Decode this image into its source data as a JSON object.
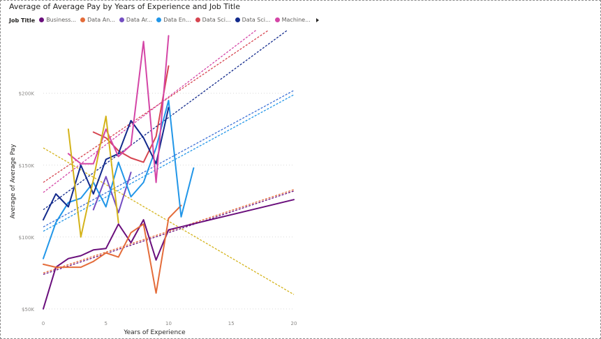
{
  "chart_data": {
    "type": "line",
    "title": "Average of Average Pay by Years of Experience and Job Title",
    "xlabel": "Years of Experience",
    "ylabel": "Average of Average Pay",
    "xlim": [
      0,
      20
    ],
    "ylim": [
      47000,
      245000
    ],
    "x_ticks": [
      {
        "value": 0,
        "label": "0"
      },
      {
        "value": 5,
        "label": "5"
      },
      {
        "value": 10,
        "label": "10"
      },
      {
        "value": 15,
        "label": "15"
      },
      {
        "value": 20,
        "label": "20"
      }
    ],
    "y_ticks": [
      {
        "value": 50000,
        "label": "$50K"
      },
      {
        "value": 100000,
        "label": "$100K"
      },
      {
        "value": 150000,
        "label": "$150K"
      },
      {
        "value": 200000,
        "label": "$200K"
      }
    ],
    "grid": true,
    "legend": {
      "title": "Job Title",
      "position": "top-left"
    },
    "series": [
      {
        "name": "Business...",
        "color": "#6a0f7c",
        "points": [
          [
            0,
            50000
          ],
          [
            1,
            79000
          ],
          [
            2,
            85000
          ],
          [
            3,
            87000
          ],
          [
            4,
            91000
          ],
          [
            5,
            92000
          ],
          [
            6,
            109000
          ],
          [
            7,
            96000
          ],
          [
            8,
            112000
          ],
          [
            9,
            84000
          ],
          [
            10,
            105000
          ],
          [
            20,
            126000
          ]
        ],
        "trend": [
          [
            0,
            74000
          ],
          [
            20,
            132000
          ]
        ]
      },
      {
        "name": "Data An...",
        "color": "#e46c3a",
        "points": [
          [
            0,
            81000
          ],
          [
            1,
            79000
          ],
          [
            2,
            79000
          ],
          [
            3,
            79000
          ],
          [
            4,
            83000
          ],
          [
            5,
            89000
          ],
          [
            6,
            86000
          ],
          [
            7,
            103000
          ],
          [
            8,
            109000
          ],
          [
            9,
            61000
          ],
          [
            10,
            113000
          ],
          [
            11,
            122000
          ]
        ],
        "trend": [
          [
            0,
            75000
          ],
          [
            20,
            133000
          ]
        ]
      },
      {
        "name": "Data Ar...",
        "color": "#744ec2",
        "points": [
          [
            4,
            119000
          ],
          [
            5,
            142000
          ],
          [
            6,
            117000
          ],
          [
            7,
            145000
          ]
        ],
        "trend": []
      },
      {
        "name": "Data En...",
        "color": "#2196e8",
        "points": [
          [
            0,
            85000
          ],
          [
            1,
            110000
          ],
          [
            2,
            124000
          ],
          [
            3,
            127000
          ],
          [
            4,
            138000
          ],
          [
            5,
            121000
          ],
          [
            6,
            152000
          ],
          [
            7,
            128000
          ],
          [
            8,
            138000
          ],
          [
            9,
            162000
          ],
          [
            10,
            195000
          ],
          [
            11,
            114000
          ],
          [
            12,
            148000
          ]
        ],
        "trend": [
          [
            0,
            104000
          ],
          [
            20,
            199000
          ]
        ]
      },
      {
        "name": "Data Sci...",
        "color": "#d64550",
        "points": [
          [
            4,
            173000
          ],
          [
            5,
            169000
          ],
          [
            6,
            160000
          ],
          [
            7,
            155000
          ],
          [
            8,
            152000
          ],
          [
            9,
            170000
          ],
          [
            10,
            219000
          ]
        ],
        "trend": [
          [
            0,
            138000
          ],
          [
            18,
            244000
          ]
        ]
      },
      {
        "name": "Data Sci...",
        "color": "#122a8c",
        "points": [
          [
            0,
            112000
          ],
          [
            1,
            130000
          ],
          [
            2,
            121000
          ],
          [
            3,
            150000
          ],
          [
            4,
            130000
          ],
          [
            5,
            154000
          ],
          [
            6,
            158000
          ],
          [
            7,
            181000
          ],
          [
            8,
            169000
          ],
          [
            9,
            151000
          ],
          [
            10,
            190000
          ]
        ],
        "trend": [
          [
            0,
            119000
          ],
          [
            19.5,
            244000
          ]
        ]
      },
      {
        "name": "Machine...",
        "color": "#d445a6",
        "points": [
          [
            2,
            158000
          ],
          [
            3,
            151000
          ],
          [
            4,
            151000
          ],
          [
            5,
            175000
          ],
          [
            6,
            156000
          ],
          [
            7,
            164000
          ],
          [
            8,
            236000
          ],
          [
            9,
            138000
          ],
          [
            10,
            240000
          ]
        ],
        "trend": [
          [
            0,
            131000
          ],
          [
            17,
            244000
          ]
        ]
      },
      {
        "name": "",
        "color": "#d4b31a",
        "points": [
          [
            2,
            175000
          ],
          [
            3,
            100000
          ],
          [
            4,
            140000
          ],
          [
            5,
            184000
          ],
          [
            6,
            110000
          ]
        ],
        "trend": [
          [
            0,
            162000
          ],
          [
            20,
            60000
          ]
        ]
      },
      {
        "name": "",
        "color": "#3a6fd6",
        "points": [],
        "trend": [
          [
            0,
            107000
          ],
          [
            20,
            202000
          ]
        ]
      }
    ]
  }
}
